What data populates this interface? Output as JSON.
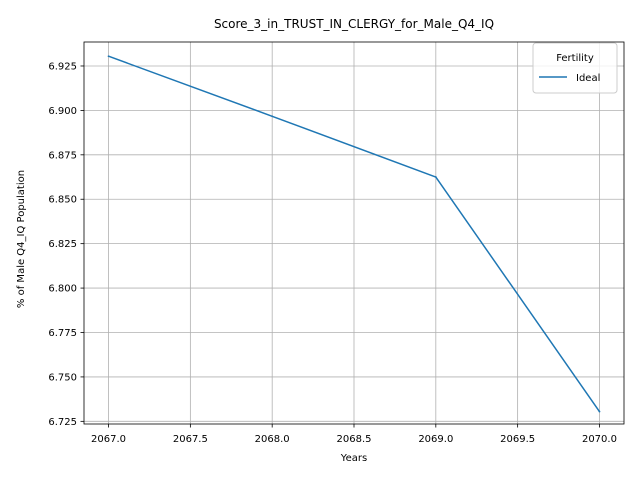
{
  "chart_data": {
    "type": "line",
    "title": "Score_3_in_TRUST_IN_CLERGY_for_Male_Q4_IQ",
    "xlabel": "Years",
    "ylabel": "% of Male Q4_IQ Population",
    "xlim": [
      2066.85,
      2070.15
    ],
    "ylim": [
      6.7235,
      6.9385
    ],
    "xticks": [
      2067.0,
      2067.5,
      2068.0,
      2068.5,
      2069.0,
      2069.5,
      2070.0
    ],
    "xtick_labels": [
      "2067.0",
      "2067.5",
      "2068.0",
      "2068.5",
      "2069.0",
      "2069.5",
      "2070.0"
    ],
    "yticks": [
      6.725,
      6.75,
      6.775,
      6.8,
      6.825,
      6.85,
      6.875,
      6.9,
      6.925
    ],
    "ytick_labels": [
      "6.725",
      "6.750",
      "6.775",
      "6.800",
      "6.825",
      "6.850",
      "6.875",
      "6.900",
      "6.925"
    ],
    "grid": true,
    "legend": {
      "title": "Fertility",
      "placement": "top-right"
    },
    "series": [
      {
        "name": "Ideal",
        "color": "#1f77b4",
        "x": [
          2067,
          2068,
          2069,
          2070
        ],
        "y": [
          6.9305,
          6.8967,
          6.8625,
          6.7305
        ]
      }
    ]
  }
}
